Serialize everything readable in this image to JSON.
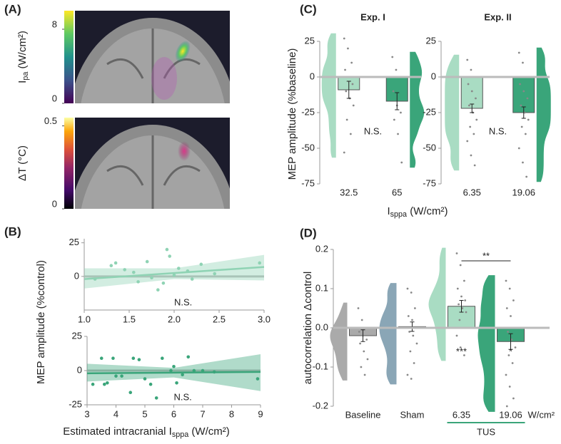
{
  "panels": [
    "(A)",
    "(B)",
    "(C)",
    "(D)"
  ],
  "chart_data": [
    {
      "type": "colorbar",
      "colormap": "viridis",
      "label": [
        "I",
        "pa",
        " (W/cm²)"
      ],
      "ylim": [
        0,
        10
      ],
      "yticks": [
        0,
        8
      ]
    },
    {
      "type": "colorbar",
      "colormap": "inferno",
      "label": [
        "ΔT (°C)"
      ],
      "ylim": [
        0,
        0.55
      ],
      "yticks": [
        0,
        0.5
      ]
    },
    {
      "type": "scatter",
      "ylabel": "MEP amplitude (%control)",
      "color": "#8fd3b4",
      "x": [
        1.12,
        1.3,
        1.35,
        1.45,
        1.55,
        1.6,
        1.7,
        1.75,
        1.82,
        1.88,
        1.92,
        1.95,
        2.0,
        2.05,
        2.15,
        2.2,
        2.3,
        2.45,
        2.95
      ],
      "y": [
        -2,
        8,
        10,
        5,
        3,
        -4,
        11,
        -1,
        -10,
        -5,
        20,
        15,
        1,
        6,
        4,
        -2,
        9,
        2,
        10
      ],
      "fit": {
        "x": [
          1,
          2,
          3
        ],
        "y": [
          -2,
          2.5,
          7
        ],
        "lower": [
          -9,
          -2,
          -3
        ],
        "upper": [
          6,
          6,
          16
        ]
      },
      "xlim": [
        1,
        3
      ],
      "xticks": [
        {
          "value": 1,
          "label": "1.0"
        },
        1.5,
        {
          "value": 2,
          "label": "2.0"
        },
        2.5,
        {
          "value": 3,
          "label": "3.0"
        }
      ],
      "ylim": [
        -25,
        28
      ],
      "yticks": [
        0,
        25
      ],
      "annotation": "N.S."
    },
    {
      "type": "scatter",
      "xlabel": [
        "Estimated intracranial I",
        "sppa",
        " (W/cm²)"
      ],
      "color": "#3aa57a",
      "x": [
        3.2,
        3.5,
        3.6,
        3.7,
        3.9,
        4.0,
        4.2,
        4.5,
        4.6,
        4.8,
        5.0,
        5.2,
        5.4,
        5.6,
        5.9,
        6.0,
        6.1,
        6.3,
        6.5,
        6.7,
        7.0,
        7.4,
        8.9
      ],
      "y": [
        -10,
        9,
        -10,
        -9,
        9,
        -4,
        -4,
        -16,
        9,
        8,
        -6,
        -10,
        -20,
        9,
        0,
        3,
        -9,
        -3,
        10,
        0,
        0,
        -1,
        -6
      ],
      "fit": {
        "x": [
          3,
          6,
          9
        ],
        "y": [
          -2,
          -1.5,
          -1
        ],
        "lower": [
          -8,
          -5,
          -15
        ],
        "upper": [
          5,
          2,
          12
        ]
      },
      "xlim": [
        3,
        9
      ],
      "xticks": [
        3,
        4,
        5,
        6,
        7,
        8,
        9
      ],
      "ylim": [
        -25,
        25
      ],
      "yticks": [
        -25,
        0,
        25
      ],
      "annotation": "N.S."
    },
    {
      "type": "bar-violin",
      "title": "Exp. I",
      "ylabel": "MEP amplitude (%baseline)",
      "xlabel": [
        "I",
        "sppa",
        " (W/cm²)"
      ],
      "categories": [
        "32.5",
        "65"
      ],
      "values": [
        -9,
        -17
      ],
      "errors": [
        6,
        6
      ],
      "colors": [
        "#a9dcc3",
        "#3aa57a"
      ],
      "violin_side": [
        "left",
        "right"
      ],
      "points": [
        [
          27,
          20,
          10,
          5,
          0,
          -5,
          -10,
          -15,
          -20,
          -30,
          -40,
          -53
        ],
        [
          14,
          5,
          0,
          -10,
          -20,
          -25,
          -30,
          -40,
          -60
        ]
      ],
      "ylim": [
        -75,
        25
      ],
      "yticks": [
        -75,
        -50,
        -25,
        0,
        25
      ],
      "annotation": "N.S."
    },
    {
      "type": "bar-violin",
      "title": "Exp. II",
      "categories": [
        "6.35",
        "19.06"
      ],
      "values": [
        -22,
        -25
      ],
      "errors": [
        3,
        4
      ],
      "colors": [
        "#a9dcc3",
        "#3aa57a"
      ],
      "violin_side": [
        "left",
        "right"
      ],
      "points": [
        [
          12,
          5,
          0,
          -5,
          -10,
          -15,
          -20,
          -25,
          -30,
          -35,
          -40,
          -45,
          -55,
          -62
        ],
        [
          17,
          10,
          0,
          -5,
          -10,
          -15,
          -20,
          -25,
          -30,
          -35,
          -40,
          -50,
          -60,
          -70
        ]
      ],
      "ylim": [
        -75,
        25
      ],
      "yticks": [
        -75,
        -50,
        -25,
        0,
        25
      ],
      "annotation": "N.S."
    },
    {
      "type": "bar-violin",
      "ylabel": "autocorrelation Δcontrol",
      "unit": "W/cm²",
      "group": "TUS",
      "bracket_label": "**",
      "categories": [
        "Baseline",
        "Sham",
        "6.35",
        "19.06"
      ],
      "values": [
        -0.02,
        0.003,
        0.055,
        -0.035
      ],
      "errors": [
        0.015,
        0.012,
        0.015,
        0.02
      ],
      "colors": [
        "#aaaaaa",
        "#8aa6b6",
        "#a9dcc3",
        "#3aa57a"
      ],
      "violin_side": [
        "left",
        "left",
        "left",
        "left"
      ],
      "stars": [
        null,
        null,
        "***",
        "*"
      ],
      "points": [
        [
          0.05,
          0.02,
          0,
          -0.01,
          -0.02,
          -0.03,
          -0.04,
          -0.06,
          -0.08,
          -0.1,
          -0.12
        ],
        [
          0.1,
          0.09,
          0.05,
          0.03,
          0.02,
          0,
          -0.01,
          -0.02,
          -0.04,
          -0.06,
          -0.09,
          -0.12,
          -0.13
        ],
        [
          0.19,
          0.16,
          0.12,
          0.1,
          0.08,
          0.07,
          0.06,
          0.05,
          0.04,
          0.02,
          0,
          -0.02,
          -0.05,
          -0.07
        ],
        [
          0.12,
          0.1,
          0.07,
          0.05,
          0.03,
          0,
          -0.01,
          -0.03,
          -0.05,
          -0.07,
          -0.09,
          -0.12,
          -0.15,
          -0.18,
          -0.2
        ]
      ],
      "ylim": [
        -0.2,
        0.2
      ],
      "yticks": [
        0.2,
        0.1,
        {
          "value": 0,
          "label": "0.0"
        },
        -0.1,
        -0.2
      ]
    }
  ]
}
